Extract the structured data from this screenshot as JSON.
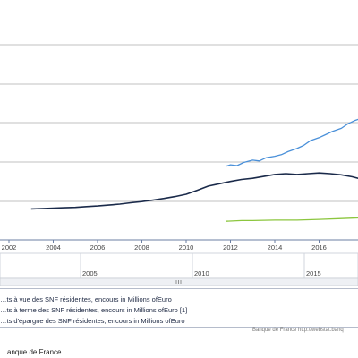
{
  "chart_data": {
    "type": "line",
    "x_ticks": [
      "2002",
      "2004",
      "2006",
      "2008",
      "2010",
      "2012",
      "2014",
      "2016"
    ],
    "navigator_ticks": [
      "2005",
      "2010",
      "2015"
    ],
    "grid": true,
    "series": [
      {
        "name": "…ts à vue des SNF résidentes, encours in Millions ofEuro",
        "color": "#1a2a4a",
        "points": [
          [
            2003.0,
            4.0
          ],
          [
            2003.5,
            4.05
          ],
          [
            2004.0,
            4.1
          ],
          [
            2004.5,
            4.15
          ],
          [
            2005.0,
            4.2
          ],
          [
            2005.5,
            4.3
          ],
          [
            2006.0,
            4.38
          ],
          [
            2006.5,
            4.5
          ],
          [
            2007.0,
            4.62
          ],
          [
            2007.5,
            4.8
          ],
          [
            2008.0,
            4.95
          ],
          [
            2008.5,
            5.15
          ],
          [
            2009.0,
            5.35
          ],
          [
            2009.5,
            5.6
          ],
          [
            2010.0,
            5.9
          ],
          [
            2010.5,
            6.4
          ],
          [
            2011.0,
            6.95
          ],
          [
            2011.5,
            7.25
          ],
          [
            2012.0,
            7.55
          ],
          [
            2012.5,
            7.8
          ],
          [
            2013.0,
            7.95
          ],
          [
            2013.5,
            8.2
          ],
          [
            2014.0,
            8.45
          ],
          [
            2014.5,
            8.55
          ],
          [
            2015.0,
            8.45
          ],
          [
            2015.5,
            8.55
          ],
          [
            2016.0,
            8.65
          ],
          [
            2016.5,
            8.55
          ],
          [
            2017.0,
            8.4
          ],
          [
            2017.5,
            8.15
          ],
          [
            2017.9,
            7.85
          ]
        ]
      },
      {
        "name": "…ts à terme des SNF résidentes, encours in Millions ofEuro [1]",
        "color": "#4a90d9",
        "points": [
          [
            2011.8,
            9.5
          ],
          [
            2012.0,
            9.7
          ],
          [
            2012.3,
            9.6
          ],
          [
            2012.6,
            10.0
          ],
          [
            2013.0,
            10.3
          ],
          [
            2013.3,
            10.2
          ],
          [
            2013.6,
            10.6
          ],
          [
            2014.0,
            10.8
          ],
          [
            2014.3,
            11.0
          ],
          [
            2014.6,
            11.4
          ],
          [
            2015.0,
            11.8
          ],
          [
            2015.3,
            12.2
          ],
          [
            2015.6,
            12.8
          ],
          [
            2016.0,
            13.2
          ],
          [
            2016.3,
            13.6
          ],
          [
            2016.6,
            14.0
          ],
          [
            2017.0,
            14.4
          ],
          [
            2017.3,
            15.0
          ],
          [
            2017.6,
            15.4
          ],
          [
            2017.9,
            15.7
          ]
        ]
      },
      {
        "name": "…ts d'épargne des SNF résidentes, encours in Millions ofEuro",
        "color": "#8cc63f",
        "points": [
          [
            2011.8,
            2.4
          ],
          [
            2012.5,
            2.5
          ],
          [
            2013.0,
            2.5
          ],
          [
            2014.0,
            2.55
          ],
          [
            2015.0,
            2.55
          ],
          [
            2016.0,
            2.65
          ],
          [
            2017.0,
            2.75
          ],
          [
            2017.9,
            2.85
          ]
        ]
      }
    ]
  },
  "credits": "Banque de France http://webstat.banq",
  "source": "…anque de France"
}
